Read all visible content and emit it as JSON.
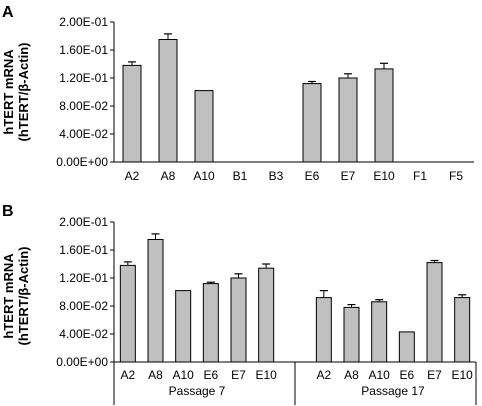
{
  "colors": {
    "bar": "#c0c0c0",
    "stroke": "#000000"
  },
  "chart_data": [
    {
      "type": "bar",
      "panel_label": "A",
      "ylabel_line1": "hTERT mRNA",
      "ylabel_line2": "(hTERT/β-Actin)",
      "ylim": [
        0,
        0.2
      ],
      "yticks": [
        "0.00E+00",
        "4.00E-02",
        "8.00E-02",
        "1.20E-01",
        "1.60E-01",
        "2.00E-01"
      ],
      "ytick_values": [
        0,
        0.04,
        0.08,
        0.12,
        0.16,
        0.2
      ],
      "categories": [
        "A2",
        "A8",
        "A10",
        "B1",
        "B3",
        "E6",
        "E7",
        "E10",
        "F1",
        "F5"
      ],
      "values": [
        0.138,
        0.175,
        0.102,
        0,
        0,
        0.112,
        0.12,
        0.133,
        0,
        0
      ],
      "errors": [
        0.005,
        0.008,
        0,
        0,
        0,
        0.003,
        0.006,
        0.008,
        0,
        0
      ],
      "grid": false
    },
    {
      "type": "bar",
      "panel_label": "B",
      "ylabel_line1": "hTERT mRNA",
      "ylabel_line2": "(hTERT/β-Actin)",
      "ylim": [
        0,
        0.2
      ],
      "yticks": [
        "0.00E+00",
        "4.00E-02",
        "8.00E-02",
        "1.20E-01",
        "1.60E-01",
        "2.00E-01"
      ],
      "ytick_values": [
        0,
        0.04,
        0.08,
        0.12,
        0.16,
        0.2
      ],
      "groups": [
        {
          "name": "Passage 7",
          "categories": [
            "A2",
            "A8",
            "A10",
            "E6",
            "E7",
            "E10"
          ],
          "values": [
            0.138,
            0.175,
            0.102,
            0.112,
            0.12,
            0.134
          ],
          "errors": [
            0.005,
            0.008,
            0,
            0.002,
            0.006,
            0.006
          ]
        },
        {
          "name": "Passage 17",
          "categories": [
            "A2",
            "A8",
            "A10",
            "E6",
            "E7",
            "E10"
          ],
          "values": [
            0.092,
            0.078,
            0.086,
            0.043,
            0.142,
            0.092
          ],
          "errors": [
            0.01,
            0.004,
            0.003,
            0,
            0.003,
            0.004
          ]
        }
      ],
      "grid": false
    }
  ]
}
